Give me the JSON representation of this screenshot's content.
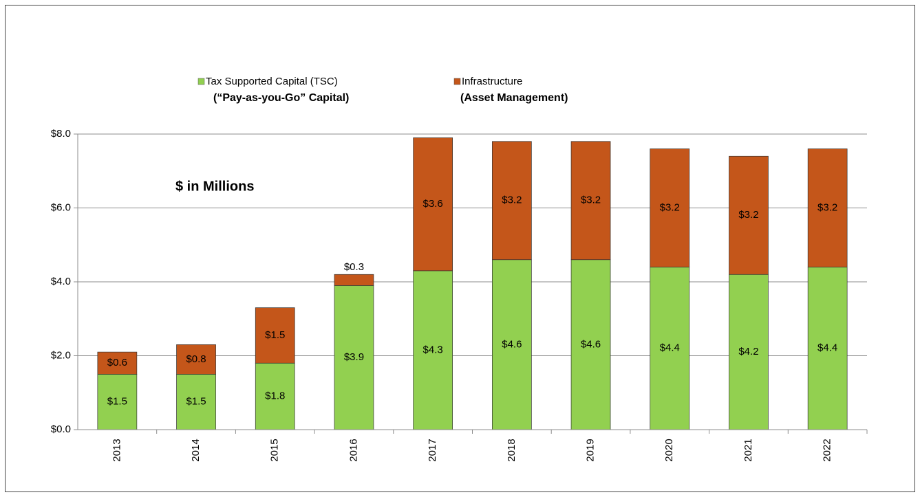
{
  "chart_data": {
    "type": "stacked_bar",
    "annotation": "$ in Millions",
    "categories": [
      "2013",
      "2014",
      "2015",
      "2016",
      "2017",
      "2018",
      "2019",
      "2020",
      "2021",
      "2022"
    ],
    "series": [
      {
        "name": "Tax Supported Capital (TSC)",
        "note": "(“Pay-as-you-Go” Capital)",
        "note_color": "#3a9a2a",
        "color": "#92d050",
        "values": [
          1.5,
          1.5,
          1.8,
          3.9,
          4.3,
          4.6,
          4.6,
          4.4,
          4.2,
          4.4
        ],
        "value_labels": [
          "$1.5",
          "$1.5",
          "$1.8",
          "$3.9",
          "$4.3",
          "$4.6",
          "$4.6",
          "$4.4",
          "$4.2",
          "$4.4"
        ]
      },
      {
        "name": "Infrastructure",
        "note": "(Asset Management)",
        "note_color": "#d9141b",
        "color": "#c4561a",
        "values": [
          0.6,
          0.8,
          1.5,
          0.3,
          3.6,
          3.2,
          3.2,
          3.2,
          3.2,
          3.2
        ],
        "value_labels": [
          "$0.6",
          "$0.8",
          "$1.5",
          "$0.3",
          "$3.6",
          "$3.2",
          "$3.2",
          "$3.2",
          "$3.2",
          "$3.2"
        ]
      }
    ],
    "ylim": [
      0,
      8
    ],
    "yticks": [
      {
        "value": 0,
        "label": "$0.0"
      },
      {
        "value": 2,
        "label": "$2.0"
      },
      {
        "value": 4,
        "label": "$4.0"
      },
      {
        "value": 6,
        "label": "$6.0"
      },
      {
        "value": 8,
        "label": "$8.0"
      }
    ],
    "grid": true
  }
}
